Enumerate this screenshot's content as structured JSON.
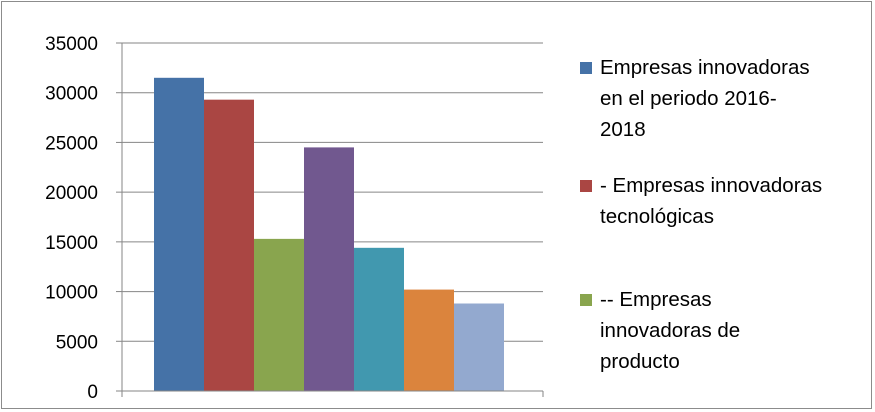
{
  "chart_data": {
    "type": "bar",
    "title": "",
    "xlabel": "",
    "ylabel": "",
    "ylim": [
      0,
      35000
    ],
    "yticks": [
      0,
      5000,
      10000,
      15000,
      20000,
      25000,
      30000,
      35000
    ],
    "grid": true,
    "legend_position": "right",
    "categories": [
      ""
    ],
    "series": [
      {
        "name": "Empresas innovadoras en el periodo 2016-2018",
        "values": [
          31500
        ],
        "color": "#4572A7"
      },
      {
        "name": "- Empresas innovadoras tecnológicas",
        "values": [
          29300
        ],
        "color": "#AA4643"
      },
      {
        "name": "-- Empresas innovadoras de producto",
        "values": [
          15300
        ],
        "color": "#89A54E"
      },
      {
        "values": [
          24500
        ],
        "color": "#71588F"
      },
      {
        "values": [
          14400
        ],
        "color": "#4198AF"
      },
      {
        "values": [
          10200
        ],
        "color": "#DB843D"
      },
      {
        "values": [
          8800
        ],
        "color": "#93A9CF"
      }
    ],
    "legend_entries": [
      {
        "lines": "Empresas innovadoras\nen el periodo 2016-\n2018",
        "color": "#4572A7"
      },
      {
        "lines": "- Empresas innovadoras\ntecnológicas",
        "color": "#AA4643"
      },
      {
        "lines": "-- Empresas\ninnovadoras de\nproducto",
        "color": "#89A54E"
      }
    ]
  }
}
